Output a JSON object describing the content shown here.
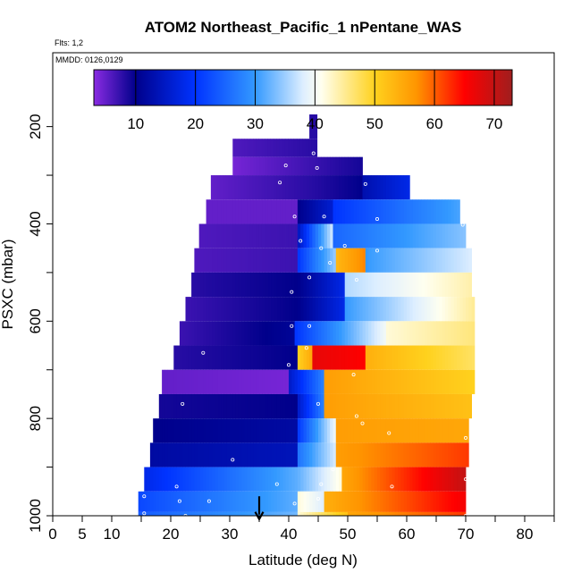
{
  "chart_data": {
    "type": "heatmap",
    "title": "ATOM2 Northeast_Pacific_1 nPentane_WAS",
    "subtitle_flts": "Flts: 1,2",
    "subtitle_mmdd": "MMDD: 0126,0129",
    "xlabel": "Latitude (deg N)",
    "ylabel": "PSXC (mbar)",
    "xlim": [
      0,
      85
    ],
    "ylim": [
      1000,
      50
    ],
    "y_reversed": true,
    "x_ticks": [
      0,
      5,
      10,
      20,
      30,
      40,
      50,
      60,
      70,
      80
    ],
    "x_tick_labels": [
      "0",
      "5",
      "10",
      "20",
      "30",
      "40",
      "50",
      "60",
      "70",
      "80"
    ],
    "x_minor_ticks": [
      15,
      25,
      35,
      45,
      55,
      65,
      75,
      85
    ],
    "y_ticks": [
      200,
      400,
      600,
      800,
      1000
    ],
    "y_tick_labels": [
      "200",
      "400",
      "600",
      "800",
      "1000"
    ],
    "y_minor_ticks": [
      300,
      500,
      700,
      900
    ],
    "colorbar": {
      "min": 3,
      "max": 73,
      "ticks": [
        10,
        20,
        30,
        40,
        50,
        60,
        70
      ],
      "tick_labels": [
        "10",
        "20",
        "30",
        "40",
        "50",
        "60",
        "70"
      ],
      "stops": [
        {
          "v": 3,
          "color": "#8A2BE2"
        },
        {
          "v": 10,
          "color": "#00008B"
        },
        {
          "v": 20,
          "color": "#0033FF"
        },
        {
          "v": 30,
          "color": "#3399FF"
        },
        {
          "v": 38,
          "color": "#DDEEFF"
        },
        {
          "v": 41,
          "color": "#FFFFF0"
        },
        {
          "v": 50,
          "color": "#FFD21E"
        },
        {
          "v": 57,
          "color": "#FF9500"
        },
        {
          "v": 65,
          "color": "#FF0000"
        },
        {
          "v": 73,
          "color": "#A01E1E"
        }
      ]
    },
    "rows": [
      {
        "p": 200,
        "segments": [
          {
            "lat0": 43.5,
            "lat1": 44.8,
            "v0": 8,
            "v1": 8
          }
        ]
      },
      {
        "p": 250,
        "segments": [
          {
            "lat0": 30.5,
            "lat1": 44.8,
            "v0": 6,
            "v1": 8
          }
        ]
      },
      {
        "p": 275,
        "segments": [
          {
            "lat0": 30.5,
            "lat1": 52.5,
            "v0": 4,
            "v1": 9
          }
        ]
      },
      {
        "p": 325,
        "segments": [
          {
            "lat0": 26.8,
            "lat1": 44.0,
            "v0": 5,
            "v1": 8
          },
          {
            "lat0": 44.0,
            "lat1": 52.5,
            "v0": 8,
            "v1": 10
          },
          {
            "lat0": 52.5,
            "lat1": 60.5,
            "v0": 13,
            "v1": 18
          }
        ]
      },
      {
        "p": 375,
        "segments": [
          {
            "lat0": 26.0,
            "lat1": 41.5,
            "v0": 5,
            "v1": 5
          },
          {
            "lat0": 41.5,
            "lat1": 47.5,
            "v0": 10,
            "v1": 16
          },
          {
            "lat0": 47.5,
            "lat1": 69.0,
            "v0": 20,
            "v1": 31
          }
        ]
      },
      {
        "p": 425,
        "segments": [
          {
            "lat0": 24.8,
            "lat1": 41.5,
            "v0": 6,
            "v1": 7
          },
          {
            "lat0": 41.5,
            "lat1": 47.5,
            "v0": 14,
            "v1": 38
          },
          {
            "lat0": 47.5,
            "lat1": 70.0,
            "v0": 25,
            "v1": 34
          }
        ]
      },
      {
        "p": 475,
        "segments": [
          {
            "lat0": 24.0,
            "lat1": 41.5,
            "v0": 6,
            "v1": 7
          },
          {
            "lat0": 41.5,
            "lat1": 48.0,
            "v0": 20,
            "v1": 35
          },
          {
            "lat0": 48.0,
            "lat1": 53.0,
            "v0": 53,
            "v1": 58
          },
          {
            "lat0": 53.0,
            "lat1": 71.0,
            "v0": 30,
            "v1": 38
          }
        ]
      },
      {
        "p": 525,
        "segments": [
          {
            "lat0": 23.5,
            "lat1": 41.5,
            "v0": 8,
            "v1": 10
          },
          {
            "lat0": 41.5,
            "lat1": 49.5,
            "v0": 10,
            "v1": 18
          },
          {
            "lat0": 49.5,
            "lat1": 71.0,
            "v0": 36,
            "v1": 44
          }
        ]
      },
      {
        "p": 575,
        "segments": [
          {
            "lat0": 22.5,
            "lat1": 41.5,
            "v0": 7,
            "v1": 10
          },
          {
            "lat0": 41.5,
            "lat1": 49.5,
            "v0": 10,
            "v1": 18
          },
          {
            "lat0": 49.5,
            "lat1": 71.5,
            "v0": 30,
            "v1": 45
          }
        ]
      },
      {
        "p": 625,
        "segments": [
          {
            "lat0": 21.5,
            "lat1": 41.0,
            "v0": 7,
            "v1": 11
          },
          {
            "lat0": 41.0,
            "lat1": 56.5,
            "v0": 20,
            "v1": 40
          },
          {
            "lat0": 56.5,
            "lat1": 71.5,
            "v0": 42,
            "v1": 46
          }
        ]
      },
      {
        "p": 675,
        "segments": [
          {
            "lat0": 20.5,
            "lat1": 41.5,
            "v0": 8,
            "v1": 10
          },
          {
            "lat0": 41.5,
            "lat1": 44.0,
            "v0": 50,
            "v1": 55
          },
          {
            "lat0": 44.0,
            "lat1": 53.0,
            "v0": 67,
            "v1": 65
          },
          {
            "lat0": 53.0,
            "lat1": 71.5,
            "v0": 54,
            "v1": 47
          }
        ]
      },
      {
        "p": 725,
        "segments": [
          {
            "lat0": 18.5,
            "lat1": 40.0,
            "v0": 5,
            "v1": 4
          },
          {
            "lat0": 40.0,
            "lat1": 46.0,
            "v0": 15,
            "v1": 28
          },
          {
            "lat0": 46.0,
            "lat1": 71.5,
            "v0": 56,
            "v1": 50
          }
        ]
      },
      {
        "p": 775,
        "segments": [
          {
            "lat0": 18.0,
            "lat1": 41.5,
            "v0": 9,
            "v1": 10
          },
          {
            "lat0": 41.5,
            "lat1": 46.0,
            "v0": 15,
            "v1": 28
          },
          {
            "lat0": 46.0,
            "lat1": 71.0,
            "v0": 56,
            "v1": 52
          }
        ]
      },
      {
        "p": 825,
        "segments": [
          {
            "lat0": 17.0,
            "lat1": 41.5,
            "v0": 10,
            "v1": 12
          },
          {
            "lat0": 41.5,
            "lat1": 48.0,
            "v0": 20,
            "v1": 40
          },
          {
            "lat0": 48.0,
            "lat1": 70.5,
            "v0": 56,
            "v1": 55
          }
        ]
      },
      {
        "p": 875,
        "segments": [
          {
            "lat0": 16.5,
            "lat1": 41.5,
            "v0": 12,
            "v1": 14
          },
          {
            "lat0": 41.5,
            "lat1": 48.0,
            "v0": 26,
            "v1": 38
          },
          {
            "lat0": 48.0,
            "lat1": 70.5,
            "v0": 56,
            "v1": 62
          }
        ]
      },
      {
        "p": 925,
        "segments": [
          {
            "lat0": 15.5,
            "lat1": 41.5,
            "v0": 18,
            "v1": 32
          },
          {
            "lat0": 41.5,
            "lat1": 49.0,
            "v0": 32,
            "v1": 42
          },
          {
            "lat0": 49.0,
            "lat1": 70.0,
            "v0": 55,
            "v1": 70
          }
        ]
      },
      {
        "p": 975,
        "segments": [
          {
            "lat0": 14.5,
            "lat1": 41.5,
            "v0": 22,
            "v1": 32
          },
          {
            "lat0": 41.5,
            "lat1": 46.0,
            "v0": 42,
            "v1": 38
          },
          {
            "lat0": 46.0,
            "lat1": 70.0,
            "v0": 54,
            "v1": 66
          }
        ]
      },
      {
        "p": 1010,
        "segments": [
          {
            "lat0": 14.5,
            "lat1": 41.5,
            "v0": 24,
            "v1": 33
          },
          {
            "lat0": 41.5,
            "lat1": 50.0,
            "v0": 42,
            "v1": 52
          },
          {
            "lat0": 50.0,
            "lat1": 70.0,
            "v0": 55,
            "v1": 62
          }
        ]
      }
    ],
    "sample_points": [
      {
        "lat": 44.2,
        "p": 255
      },
      {
        "lat": 39.5,
        "p": 280
      },
      {
        "lat": 44.8,
        "p": 285
      },
      {
        "lat": 38.5,
        "p": 315
      },
      {
        "lat": 53.0,
        "p": 318
      },
      {
        "lat": 41.0,
        "p": 385
      },
      {
        "lat": 46.0,
        "p": 385
      },
      {
        "lat": 55.0,
        "p": 390
      },
      {
        "lat": 69.5,
        "p": 402
      },
      {
        "lat": 42.0,
        "p": 435
      },
      {
        "lat": 45.5,
        "p": 450
      },
      {
        "lat": 49.5,
        "p": 445
      },
      {
        "lat": 55.0,
        "p": 455
      },
      {
        "lat": 47.0,
        "p": 480
      },
      {
        "lat": 43.5,
        "p": 510
      },
      {
        "lat": 51.5,
        "p": 515
      },
      {
        "lat": 40.5,
        "p": 540
      },
      {
        "lat": 40.5,
        "p": 610
      },
      {
        "lat": 43.5,
        "p": 610
      },
      {
        "lat": 43.0,
        "p": 655
      },
      {
        "lat": 25.5,
        "p": 665
      },
      {
        "lat": 40.0,
        "p": 690
      },
      {
        "lat": 51.0,
        "p": 710
      },
      {
        "lat": 22.0,
        "p": 770
      },
      {
        "lat": 45.0,
        "p": 770
      },
      {
        "lat": 51.5,
        "p": 795
      },
      {
        "lat": 52.5,
        "p": 810
      },
      {
        "lat": 57.0,
        "p": 830
      },
      {
        "lat": 70.0,
        "p": 840
      },
      {
        "lat": 30.5,
        "p": 885
      },
      {
        "lat": 47.5,
        "p": 905
      },
      {
        "lat": 38.0,
        "p": 935
      },
      {
        "lat": 21.0,
        "p": 940
      },
      {
        "lat": 45.5,
        "p": 935
      },
      {
        "lat": 57.5,
        "p": 940
      },
      {
        "lat": 70.0,
        "p": 925
      },
      {
        "lat": 15.5,
        "p": 960
      },
      {
        "lat": 21.5,
        "p": 970
      },
      {
        "lat": 26.5,
        "p": 970
      },
      {
        "lat": 41.0,
        "p": 975
      },
      {
        "lat": 45.0,
        "p": 965
      },
      {
        "lat": 15.5,
        "p": 995
      },
      {
        "lat": 22.5,
        "p": 1000
      },
      {
        "lat": 51.5,
        "p": 1005
      },
      {
        "lat": 56.5,
        "p": 1003
      },
      {
        "lat": 70.0,
        "p": 1000
      }
    ],
    "arrow_marker": {
      "lat": 35.0,
      "p_from": 960,
      "p_to": 1005
    }
  }
}
